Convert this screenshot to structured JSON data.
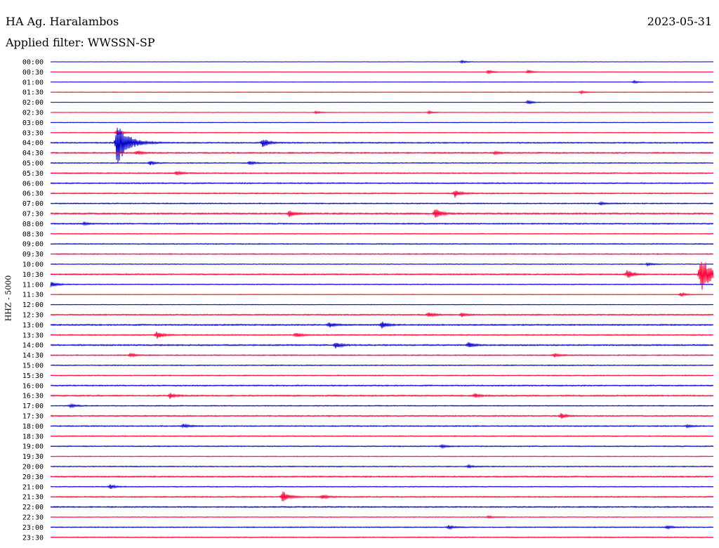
{
  "header": {
    "station": "HA Ag. Haralambos",
    "date": "2023-05-31",
    "filter": "Applied filter: WWSSN-SP"
  },
  "chart_data": {
    "type": "line",
    "title": "",
    "ylabel": "HHZ - 5000",
    "row_colors": [
      "#0000cc",
      "#ff0033"
    ],
    "rows": [
      "00:00",
      "00:30",
      "01:00",
      "01:30",
      "02:00",
      "02:30",
      "03:00",
      "03:30",
      "04:00",
      "04:30",
      "05:00",
      "05:30",
      "06:00",
      "06:30",
      "07:00",
      "07:30",
      "08:00",
      "08:30",
      "09:00",
      "09:30",
      "10:00",
      "10:30",
      "11:00",
      "11:30",
      "12:00",
      "12:30",
      "13:00",
      "13:30",
      "14:00",
      "14:30",
      "15:00",
      "15:30",
      "16:00",
      "16:30",
      "17:00",
      "17:30",
      "18:00",
      "18:30",
      "19:00",
      "19:30",
      "20:00",
      "20:30",
      "21:00",
      "21:30",
      "22:00",
      "22:30",
      "23:00",
      "23:30"
    ],
    "noise": [
      0.2,
      0.2,
      0.3,
      0.4,
      0.2,
      0.3,
      0.4,
      0.5,
      0.8,
      0.9,
      0.6,
      0.7,
      0.8,
      0.8,
      0.7,
      1.0,
      0.8,
      0.6,
      0.7,
      0.7,
      0.5,
      0.8,
      0.6,
      0.4,
      0.4,
      0.8,
      0.9,
      0.8,
      0.9,
      0.7,
      0.6,
      0.6,
      0.8,
      0.9,
      0.6,
      0.8,
      0.7,
      0.7,
      0.7,
      0.5,
      0.6,
      0.8,
      0.6,
      0.8,
      0.8,
      0.5,
      0.6,
      0.7
    ],
    "events": [
      {
        "row": "00:00",
        "t": 0.62,
        "a": 2
      },
      {
        "row": "00:30",
        "t": 0.66,
        "a": 3
      },
      {
        "row": "00:30",
        "t": 0.72,
        "a": 3
      },
      {
        "row": "01:00",
        "t": 0.88,
        "a": 2
      },
      {
        "row": "01:30",
        "t": 0.8,
        "a": 2
      },
      {
        "row": "02:00",
        "t": 0.72,
        "a": 3
      },
      {
        "row": "02:30",
        "t": 0.4,
        "a": 2
      },
      {
        "row": "02:30",
        "t": 0.57,
        "a": 2
      },
      {
        "row": "03:30",
        "t": 0.1,
        "a": 4
      },
      {
        "row": "04:00",
        "t": 0.1,
        "a": 34
      },
      {
        "row": "04:00",
        "t": 0.32,
        "a": 8
      },
      {
        "row": "04:30",
        "t": 0.13,
        "a": 3
      },
      {
        "row": "04:30",
        "t": 0.67,
        "a": 2
      },
      {
        "row": "05:00",
        "t": 0.15,
        "a": 3
      },
      {
        "row": "05:00",
        "t": 0.3,
        "a": 3
      },
      {
        "row": "05:30",
        "t": 0.19,
        "a": 3
      },
      {
        "row": "06:30",
        "t": 0.61,
        "a": 6
      },
      {
        "row": "07:00",
        "t": 0.83,
        "a": 2
      },
      {
        "row": "07:30",
        "t": 0.36,
        "a": 5
      },
      {
        "row": "07:30",
        "t": 0.58,
        "a": 8
      },
      {
        "row": "08:00",
        "t": 0.05,
        "a": 2
      },
      {
        "row": "10:00",
        "t": 0.9,
        "a": 2
      },
      {
        "row": "10:30",
        "t": 0.87,
        "a": 7
      },
      {
        "row": "10:30",
        "t": 0.98,
        "a": 28
      },
      {
        "row": "11:00",
        "t": 0.0,
        "a": 5
      },
      {
        "row": "11:30",
        "t": 0.95,
        "a": 3
      },
      {
        "row": "12:30",
        "t": 0.57,
        "a": 4
      },
      {
        "row": "12:30",
        "t": 0.62,
        "a": 3
      },
      {
        "row": "13:00",
        "t": 0.5,
        "a": 5
      },
      {
        "row": "13:00",
        "t": 0.42,
        "a": 4
      },
      {
        "row": "13:30",
        "t": 0.16,
        "a": 6
      },
      {
        "row": "13:30",
        "t": 0.37,
        "a": 4
      },
      {
        "row": "14:00",
        "t": 0.43,
        "a": 5
      },
      {
        "row": "14:00",
        "t": 0.63,
        "a": 4
      },
      {
        "row": "14:30",
        "t": 0.12,
        "a": 3
      },
      {
        "row": "14:30",
        "t": 0.76,
        "a": 3
      },
      {
        "row": "16:30",
        "t": 0.18,
        "a": 4
      },
      {
        "row": "16:30",
        "t": 0.64,
        "a": 3
      },
      {
        "row": "17:00",
        "t": 0.03,
        "a": 3
      },
      {
        "row": "17:30",
        "t": 0.77,
        "a": 4
      },
      {
        "row": "18:00",
        "t": 0.2,
        "a": 3
      },
      {
        "row": "18:00",
        "t": 0.96,
        "a": 2
      },
      {
        "row": "19:00",
        "t": 0.59,
        "a": 2
      },
      {
        "row": "20:00",
        "t": 0.63,
        "a": 2
      },
      {
        "row": "21:00",
        "t": 0.09,
        "a": 3
      },
      {
        "row": "21:30",
        "t": 0.35,
        "a": 10
      },
      {
        "row": "21:30",
        "t": 0.41,
        "a": 3
      },
      {
        "row": "22:30",
        "t": 0.66,
        "a": 2
      },
      {
        "row": "23:00",
        "t": 0.6,
        "a": 3
      },
      {
        "row": "23:00",
        "t": 0.93,
        "a": 3
      }
    ]
  }
}
